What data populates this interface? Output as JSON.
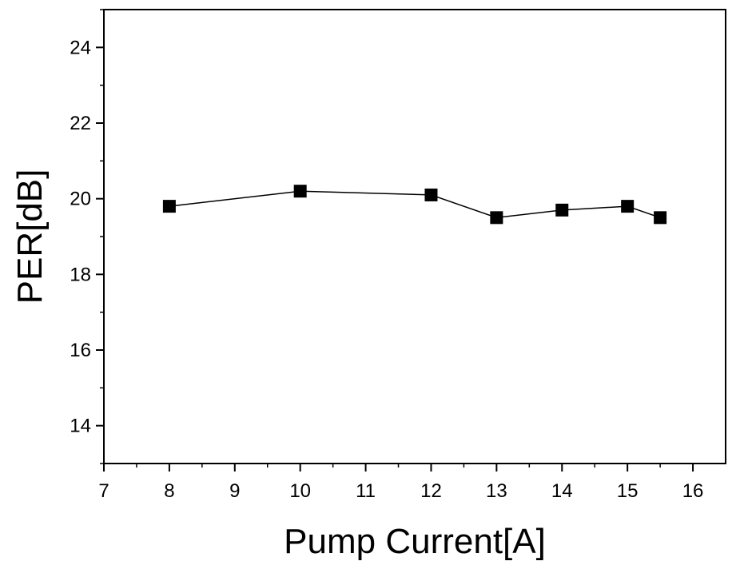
{
  "chart_data": {
    "type": "line",
    "title": "",
    "xlabel": "Pump Current[A]",
    "ylabel": "PER[dB]",
    "xlim": [
      7,
      16.5
    ],
    "ylim": [
      13,
      25
    ],
    "xticks": [
      7,
      8,
      9,
      10,
      11,
      12,
      13,
      14,
      15,
      16
    ],
    "yticks": [
      14,
      16,
      18,
      20,
      22,
      24
    ],
    "grid": false,
    "legend": "none",
    "marker": "square",
    "series_color": "#000000",
    "series": [
      {
        "x": [
          8,
          10,
          12,
          13,
          14,
          15,
          15.5
        ],
        "y": [
          19.8,
          20.2,
          20.1,
          19.5,
          19.7,
          19.8,
          19.5
        ]
      }
    ]
  }
}
